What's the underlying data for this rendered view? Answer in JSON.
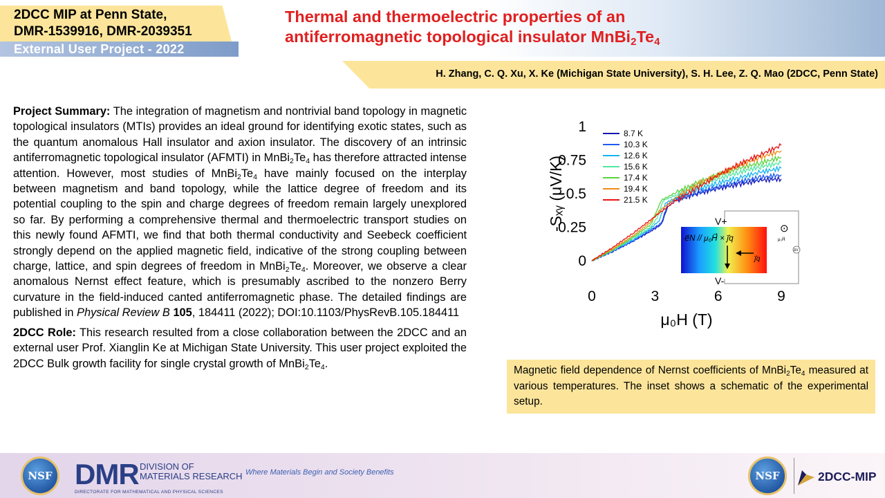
{
  "header": {
    "tag_line1": "2DCC MIP at Penn State,",
    "tag_line2": "DMR-1539916, DMR-2039351",
    "project_type": "External User Project - 2022",
    "title_line1": "Thermal and thermoelectric properties of an",
    "title_line2_pre": "antiferromagnetic topological insulator MnBi",
    "title_sub1": "2",
    "title_mid": "Te",
    "title_sub2": "4",
    "authors": "H. Zhang, C. Q. Xu, X. Ke (Michigan State University), S. H. Lee, Z. Q. Mao (2DCC, Penn State)"
  },
  "summary": {
    "heading": "Project Summary:",
    "s1": " The integration of magnetism and nontrivial band topology in magnetic topological insulators (MTIs) provides an ideal ground for identifying exotic states, such as the quantum anomalous Hall insulator and axion insulator. The discovery of an intrinsic antiferromagnetic topological insulator (AFMTI) in MnBi",
    "s2": " has therefore attracted intense attention. However, most studies of MnBi",
    "s3": " have mainly focused on the interplay between magnetism and band topology, while the lattice degree of freedom and its potential coupling to the spin and charge degrees of freedom remain largely unexplored so far. By performing a comprehensive thermal and thermoelectric transport studies on this newly found AFMTI, we find that both thermal conductivity and Seebeck coefficient strongly depend on the applied magnetic field, indicative of the strong coupling between charge, lattice, and spin degrees of freedom in MnBi",
    "s4": ". Moreover, we observe a clear anomalous Nernst effect feature, which is presumably ascribed to the nonzero Berry curvature in the field-induced canted antiferromagnetic phase. The detailed findings are published in ",
    "journal": "Physical Review B",
    "volume": "105",
    "s5": ", 184411 (2022); DOI:10.1103/PhysRevB.105.184411",
    "sub2": "2",
    "te": "Te",
    "sub4": "4"
  },
  "role": {
    "heading": "2DCC Role:",
    "text": " This research resulted from a close collaboration between the 2DCC and an external user Prof. Xianglin Ke at Michigan State University. This user project exploited the 2DCC Bulk growth facility for single crystal growth of MnBi",
    "end": "."
  },
  "caption": {
    "pre": "Magnetic field dependence of Nernst coefficients of MnBi",
    "post": " measured at various temperatures. The inset shows a schematic of the experimental setup."
  },
  "footer": {
    "nsf": "NSF",
    "dmr": "DMR",
    "dmr_line1": "DIVISION OF",
    "dmr_line2": "MATERIALS RESEARCH",
    "dmr_line3": "DIRECTORATE FOR MATHEMATICAL AND PHYSICAL SCIENCES",
    "tagline": "Where Materials Begin and Society Benefits",
    "brand": "2DCC-MIP"
  },
  "inset": {
    "v_top": "V",
    "v_top_sup": "+",
    "v_bot": "V",
    "v_bot_sup": "-",
    "formula": "e⃗N // μ₀H⃗ × j⃗q",
    "jq": "j⃗q",
    "odot": "⊙",
    "mu0H": "μ₀H⃗",
    "deltaV": "ΔV"
  },
  "chart_data": {
    "type": "line",
    "xlabel": "μ₀H (T)",
    "ylabel": "-Sₓᵧ (μV/K)",
    "xlim": [
      0,
      9
    ],
    "ylim": [
      0,
      1
    ],
    "xticks": [
      "0",
      "3",
      "6",
      "9"
    ],
    "yticks": [
      "0",
      "0.25",
      "0.5",
      "0.75",
      "1"
    ],
    "legend_position": "top-left",
    "grid": false,
    "series": [
      {
        "name": "8.7 K",
        "color": "#1414b4",
        "x": [
          0,
          1,
          2,
          2.8,
          3.3,
          3.6,
          4,
          5,
          6,
          7,
          8,
          9
        ],
        "values": [
          0,
          0.07,
          0.15,
          0.22,
          0.27,
          0.4,
          0.45,
          0.5,
          0.54,
          0.57,
          0.6,
          0.61
        ]
      },
      {
        "name": "10.3 K",
        "color": "#1e5af0",
        "x": [
          0,
          1,
          2,
          2.8,
          3.3,
          3.6,
          4,
          5,
          6,
          7,
          8,
          9
        ],
        "values": [
          0,
          0.07,
          0.15,
          0.23,
          0.28,
          0.42,
          0.46,
          0.51,
          0.55,
          0.59,
          0.62,
          0.64
        ]
      },
      {
        "name": "12.6 K",
        "color": "#14b4f0",
        "x": [
          0,
          1,
          2,
          2.8,
          3.2,
          3.5,
          4,
          5,
          6,
          7,
          8,
          9
        ],
        "values": [
          0,
          0.08,
          0.16,
          0.24,
          0.3,
          0.43,
          0.47,
          0.53,
          0.58,
          0.62,
          0.66,
          0.69
        ]
      },
      {
        "name": "15.6 K",
        "color": "#50e6a0",
        "x": [
          0,
          1,
          2,
          2.8,
          3.1,
          3.4,
          4,
          5,
          6,
          7,
          8,
          9
        ],
        "values": [
          0,
          0.08,
          0.17,
          0.25,
          0.32,
          0.45,
          0.49,
          0.56,
          0.61,
          0.66,
          0.7,
          0.73
        ]
      },
      {
        "name": "17.4 K",
        "color": "#5ad23c",
        "x": [
          0,
          1,
          2,
          2.8,
          3,
          3.3,
          4,
          5,
          6,
          7,
          8,
          9
        ],
        "values": [
          0,
          0.08,
          0.18,
          0.27,
          0.34,
          0.45,
          0.51,
          0.58,
          0.64,
          0.69,
          0.73,
          0.77
        ]
      },
      {
        "name": "19.4 K",
        "color": "#f08c14",
        "x": [
          0,
          1,
          2,
          2.8,
          3.2,
          4,
          5,
          6,
          7,
          8,
          9
        ],
        "values": [
          0,
          0.09,
          0.19,
          0.29,
          0.37,
          0.47,
          0.57,
          0.64,
          0.71,
          0.77,
          0.82
        ]
      },
      {
        "name": "21.5 K",
        "color": "#e61414",
        "x": [
          0,
          1,
          2,
          3,
          4,
          5,
          6,
          7,
          8,
          9
        ],
        "values": [
          0,
          0.1,
          0.21,
          0.33,
          0.45,
          0.54,
          0.64,
          0.72,
          0.79,
          0.86
        ]
      }
    ]
  }
}
